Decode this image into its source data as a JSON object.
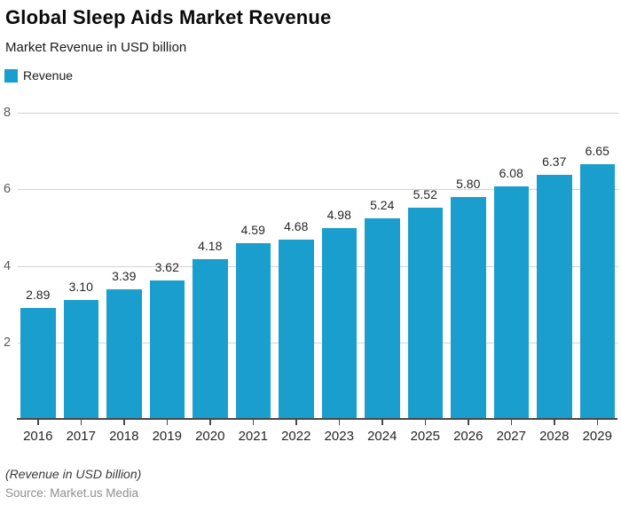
{
  "header": {
    "title": "Global Sleep Aids Market Revenue",
    "subtitle": "Market Revenue in USD billion"
  },
  "legend": {
    "items": [
      {
        "label": "Revenue",
        "color": "#1a9ecd"
      }
    ]
  },
  "chart_data": {
    "type": "bar",
    "title": "Global Sleep Aids Market Revenue",
    "subtitle": "Market Revenue in USD billion",
    "categories": [
      "2016",
      "2017",
      "2018",
      "2019",
      "2020",
      "2021",
      "2022",
      "2023",
      "2024",
      "2025",
      "2026",
      "2027",
      "2028",
      "2029"
    ],
    "series": [
      {
        "name": "Revenue",
        "values": [
          2.89,
          3.1,
          3.39,
          3.62,
          4.18,
          4.59,
          4.68,
          4.98,
          5.24,
          5.52,
          5.8,
          6.08,
          6.37,
          6.65
        ]
      }
    ],
    "value_label_decimals": 2,
    "xlabel": "",
    "ylabel": "",
    "ylim": [
      0,
      8
    ],
    "yticks": [
      2,
      4,
      6,
      8
    ],
    "grid": true,
    "legend_position": "top-left",
    "bar_color": "#1a9ecd",
    "gridline_color": "#d2d2d2",
    "axis_color": "#484848"
  },
  "footer": {
    "note": "(Revenue in USD billion)",
    "source": "Source: Market.us Media"
  }
}
